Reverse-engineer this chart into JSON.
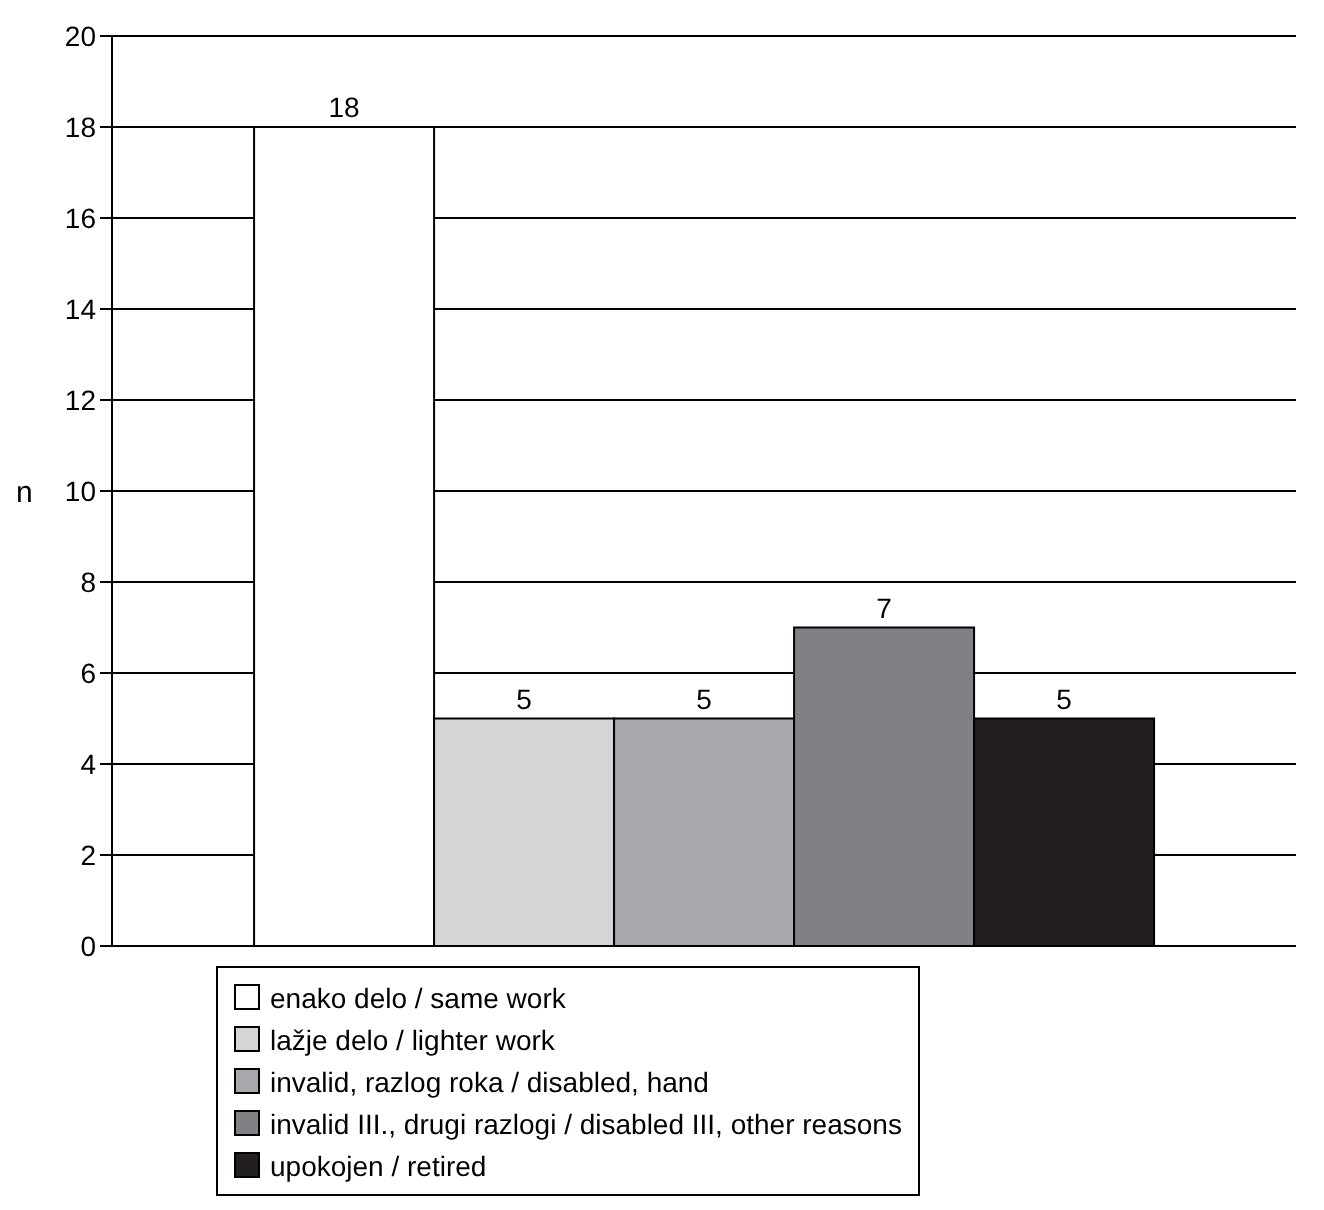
{
  "chart_data": {
    "type": "bar",
    "categories": [
      null
    ],
    "series": [
      {
        "name": "enako delo / same work",
        "color": "#ffffff",
        "values": [
          18
        ]
      },
      {
        "name": "lažje delo / lighter work",
        "color": "#d4d5d7",
        "values": [
          5
        ]
      },
      {
        "name": "invalid, razlog roka / disabled, hand",
        "color": "#a7a8ab",
        "values": [
          5
        ]
      },
      {
        "name": "invalid III., drugi razlogi / disabled III, other reasons",
        "color": "#808184",
        "values": [
          7
        ]
      },
      {
        "name": "upokojen / retired",
        "color": "#231f20",
        "values": [
          5
        ]
      }
    ],
    "ylabel": "n",
    "ylim": [
      0,
      20
    ],
    "yticks": [
      0,
      2,
      4,
      6,
      8,
      10,
      12,
      14,
      16,
      18,
      20
    ],
    "grid": "y",
    "legend": "bottom",
    "data_labels": true
  }
}
